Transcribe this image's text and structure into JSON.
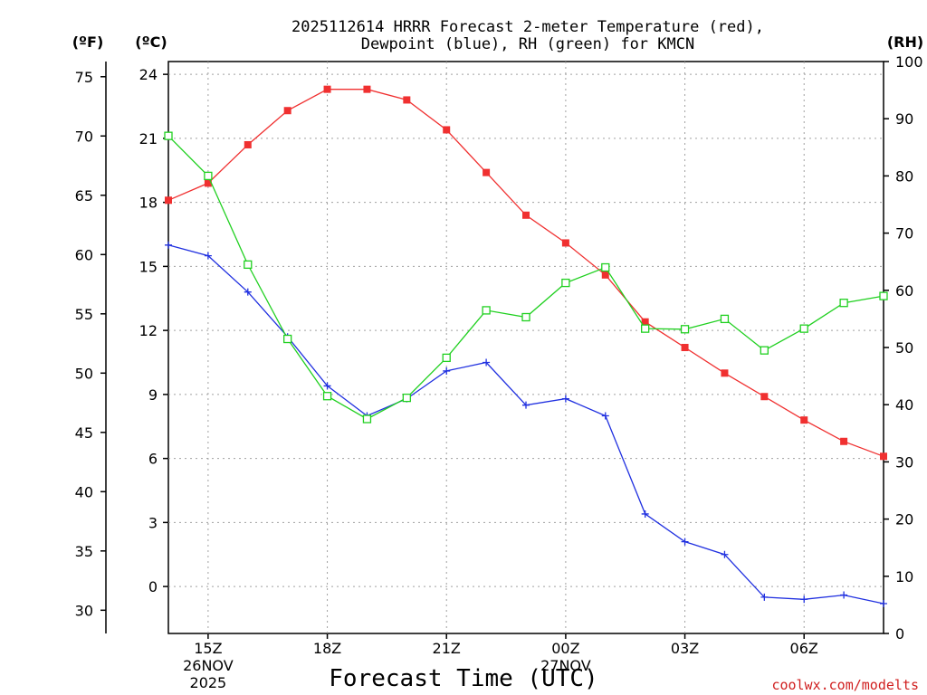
{
  "chart_data": {
    "type": "line",
    "title_line1": "2025112614 HRRR Forecast 2-meter Temperature (red),",
    "title_line2": "Dewpoint (blue), RH (green) for KMCN",
    "xlabel": "Forecast Time (UTC)",
    "credit": "coolwx.com/modelts",
    "left_f_label": "(ºF)",
    "left_c_label": "(ºC)",
    "right_label": "(RH)",
    "x_hours": [
      14,
      15,
      16,
      17,
      18,
      19,
      20,
      21,
      22,
      23,
      24,
      25,
      26,
      27,
      28,
      29,
      30,
      31,
      32
    ],
    "x_range": [
      14,
      32
    ],
    "x_ticks": [
      {
        "hour": 15,
        "label": "15Z",
        "sub1": "26NOV",
        "sub2": "2025"
      },
      {
        "hour": 18,
        "label": "18Z",
        "sub1": "",
        "sub2": ""
      },
      {
        "hour": 21,
        "label": "21Z",
        "sub1": "",
        "sub2": ""
      },
      {
        "hour": 24,
        "label": "00Z",
        "sub1": "27NOV",
        "sub2": ""
      },
      {
        "hour": 27,
        "label": "03Z",
        "sub1": "",
        "sub2": ""
      },
      {
        "hour": 30,
        "label": "06Z",
        "sub1": "",
        "sub2": ""
      }
    ],
    "c_range": [
      -2.2,
      24.6
    ],
    "c_ticks": [
      0,
      3,
      6,
      9,
      12,
      15,
      18,
      21,
      24
    ],
    "f_ticks": [
      30,
      35,
      40,
      45,
      50,
      55,
      60,
      65,
      70,
      75
    ],
    "rh_range": [
      0,
      100
    ],
    "rh_ticks": [
      0,
      10,
      20,
      30,
      40,
      50,
      60,
      70,
      80,
      90,
      100
    ],
    "series": [
      {
        "name": "Temperature",
        "unit": "C",
        "color": "#f03030",
        "marker": "filled-square",
        "values": [
          18.1,
          18.9,
          20.7,
          22.3,
          23.3,
          23.3,
          22.8,
          21.4,
          19.4,
          17.4,
          16.1,
          14.6,
          12.4,
          11.2,
          10.0,
          8.9,
          7.8,
          6.8,
          6.1
        ]
      },
      {
        "name": "Dewpoint",
        "unit": "C",
        "color": "#2030e0",
        "marker": "plus",
        "values": [
          16.0,
          15.5,
          13.8,
          11.7,
          9.4,
          8.0,
          8.8,
          10.1,
          10.5,
          8.5,
          8.8,
          8.0,
          3.4,
          2.1,
          1.5,
          -0.5,
          -0.6,
          -0.4,
          -0.8
        ]
      },
      {
        "name": "RH",
        "unit": "%",
        "color": "#20d020",
        "marker": "open-square",
        "values": [
          87,
          80,
          64.5,
          51.5,
          41.5,
          37.5,
          41.2,
          48.2,
          56.5,
          55.3,
          61.3,
          64,
          53.3,
          53.2,
          55,
          49.5,
          53.3,
          57.8,
          59
        ]
      }
    ]
  }
}
